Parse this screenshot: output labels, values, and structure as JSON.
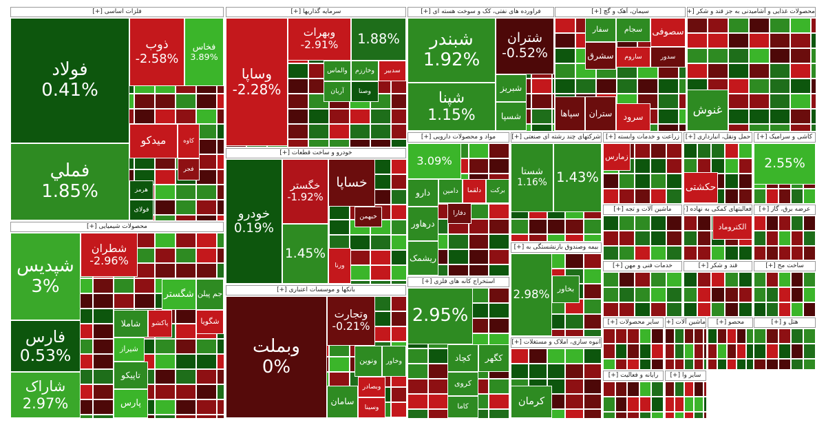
{
  "sectors": [
    {
      "title": "فلزات اساسی [+]",
      "tiles": [
        {
          "label": "فولاد",
          "change": "0.41%",
          "color": "#0d560d"
        },
        {
          "label": "فملي",
          "change": "1.85%",
          "color": "#2e8b22"
        },
        {
          "label": "ذوب",
          "change": "-2.58%",
          "color": "#c4181c"
        },
        {
          "label": "فخاس",
          "change": "3.89%",
          "color": "#3bb52a"
        },
        {
          "label": "میدکو",
          "color": "#c4181c"
        },
        {
          "label": "کاوه",
          "color": "#c4181c"
        },
        {
          "label": "فجر",
          "color": "#8e1013"
        },
        {
          "label": "هرمز",
          "color": "#0d560d"
        },
        {
          "label": "فولای",
          "color": "#0d560d"
        }
      ]
    },
    {
      "title": "محصولات شیمیایی [+]",
      "tiles": [
        {
          "label": "شپدیس",
          "change": "3%",
          "color": "#3aa82a"
        },
        {
          "label": "فارس",
          "change": "0.53%",
          "color": "#0d560d"
        },
        {
          "label": "شاراک",
          "change": "2.97%",
          "color": "#3aa82a"
        },
        {
          "label": "شطران",
          "change": "-2.96%",
          "color": "#c4181c"
        },
        {
          "label": "شگستر",
          "color": "#3bb52a"
        },
        {
          "label": "جم پیلن",
          "color": "#2e8b22"
        },
        {
          "label": "شگویا",
          "color": "#c4181c"
        },
        {
          "label": "پاکشو",
          "color": "#c4181c"
        },
        {
          "label": "شاملا",
          "color": "#2e8b22"
        },
        {
          "label": "شیراز",
          "color": "#3bb52a"
        },
        {
          "label": "تاپیکو",
          "color": "#2e8b22"
        },
        {
          "label": "پارس",
          "color": "#3bb52a"
        }
      ]
    },
    {
      "title": "سرمایه گذاریها [+]",
      "tiles": [
        {
          "label": "وساپا",
          "change": "-2.28%",
          "color": "#c4181c"
        },
        {
          "label": "وبهرات",
          "change": "-2.91%",
          "color": "#c4181c"
        },
        {
          "change": "1.88%",
          "color": "#1e6e1a"
        },
        {
          "label": "والماس",
          "color": "#2e8b22"
        },
        {
          "label": "وخارزم",
          "color": "#2e8b22"
        },
        {
          "label": "سدبیر",
          "color": "#c4181c"
        },
        {
          "label": "آریان",
          "color": "#2e8b22"
        },
        {
          "label": "وصنا",
          "color": "#0d560d"
        }
      ]
    },
    {
      "title": "خودرو و ساخت قطعات [+]",
      "tiles": [
        {
          "label": "خودرو",
          "change": "0.19%",
          "color": "#0d560d"
        },
        {
          "label": "خگستر",
          "change": "-1.92%",
          "color": "#b0141a"
        },
        {
          "label": "خساپا",
          "color": "#6b0d0d"
        },
        {
          "change": "1.45%",
          "color": "#2e8b22"
        },
        {
          "label": "خبهمن",
          "color": "#6b0d0d"
        },
        {
          "label": "ورنا",
          "color": "#c4181c"
        }
      ]
    },
    {
      "title": "بانکها و موسسات اعتباری [+]",
      "tiles": [
        {
          "label": "وبملت",
          "change": "0%",
          "color": "#550a0a"
        },
        {
          "label": "وتجارت",
          "change": "-0.21%",
          "color": "#6b0d0d"
        },
        {
          "label": "ونوین",
          "color": "#2e8b22"
        },
        {
          "label": "وخاور",
          "color": "#2e8b22"
        },
        {
          "label": "وبصادر",
          "color": "#c4181c"
        },
        {
          "label": "وسینا",
          "color": "#c4181c"
        },
        {
          "label": "سامان",
          "color": "#2e8b22"
        }
      ]
    },
    {
      "title": "فراورده های نفتی، کک و سوخت هسته ای [+]",
      "tiles": [
        {
          "label": "شبندر",
          "change": "1.92%",
          "color": "#2e8b22"
        },
        {
          "label": "شتران",
          "change": "-0.52%",
          "color": "#4d0808"
        },
        {
          "label": "شپنا",
          "change": "1.15%",
          "color": "#2e8b22"
        },
        {
          "label": "شبریز",
          "color": "#2e8b22"
        },
        {
          "label": "شسپا",
          "color": "#2e8b22"
        }
      ]
    },
    {
      "title": "سیمان، آهک و گچ [+]",
      "tiles": [
        {
          "label": "سفار",
          "color": "#2e8b22"
        },
        {
          "label": "سجام",
          "color": "#2e8b22"
        },
        {
          "label": "سصوفی",
          "color": "#c4181c"
        },
        {
          "label": "سشرق",
          "color": "#6b0d0d"
        },
        {
          "label": "ساروم",
          "color": "#c4181c"
        },
        {
          "label": "سدور",
          "color": "#6b0d0d"
        },
        {
          "label": "ستران",
          "color": "#6b0d0d"
        },
        {
          "label": "سپاها",
          "color": "#6b0d0d"
        },
        {
          "label": "سرود",
          "color": "#c4181c"
        }
      ]
    },
    {
      "title": "محصولات غذایی و آشامیدنی به جز قند و شکر [+]",
      "tiles": [
        {
          "label": "غنوش",
          "color": "#2e8b22"
        }
      ]
    },
    {
      "title": "مواد و محصولات دارویی [+]",
      "tiles": [
        {
          "change": "3.09%",
          "color": "#3bb52a"
        },
        {
          "label": "برکت",
          "color": "#2e8b22"
        },
        {
          "label": "دلقما",
          "color": "#c4181c"
        },
        {
          "label": "دامین",
          "color": "#2e8b22"
        },
        {
          "label": "دارو",
          "color": "#2e8b22"
        },
        {
          "label": "دفارا",
          "color": "#6b0d0d"
        },
        {
          "label": "درهاور",
          "color": "#2e8b22"
        },
        {
          "label": "ریشمک",
          "color": "#2e8b22"
        }
      ]
    },
    {
      "title": "شرکتهای چند رشته ای صنعتی [+]",
      "tiles": [
        {
          "label": "شستا",
          "change": "1.16%",
          "color": "#2e8b22"
        },
        {
          "change": "1.43%",
          "color": "#2e8b22"
        }
      ]
    },
    {
      "title": "استخراج کانه های فلزی [+]",
      "tiles": [
        {
          "change": "2.95%",
          "color": "#2e8b22"
        },
        {
          "label": "کچاد",
          "color": "#2e8b22"
        },
        {
          "label": "کگهر",
          "color": "#2e8b22"
        },
        {
          "label": "کروی",
          "color": "#2e8b22"
        },
        {
          "label": "کاما",
          "color": "#2e8b22"
        }
      ]
    },
    {
      "title": "بیمه وصندوق بازنشستگی به [+]",
      "tiles": [
        {
          "change": "2.98%",
          "color": "#2e8b22"
        },
        {
          "label": "بخاور",
          "color": "#2e8b22"
        }
      ]
    },
    {
      "title": "انبوه سازی، املاک و مستغلات [+]",
      "tiles": [
        {
          "label": "کرمان",
          "color": "#2e8b22"
        }
      ]
    },
    {
      "title": "زراعت و خدمات وابسته [+]",
      "tiles": [
        {
          "label": "زمارس",
          "color": "#c4181c"
        }
      ]
    },
    {
      "title": "حمل ونقل، انبارداری [+]",
      "tiles": [
        {
          "label": "حکشتی",
          "color": "#c4181c"
        }
      ]
    },
    {
      "title": "کاشی و سرامیک [+]",
      "tiles": [
        {
          "change": "2.55%",
          "color": "#3bb52a"
        }
      ]
    },
    {
      "title": "ماشین آلات و تجه [+]",
      "tiles": []
    },
    {
      "title": "فعالیتهای کمکی به نهاده [+]",
      "tiles": [
        {
          "label": "الکتروماد",
          "color": "#c4181c"
        }
      ]
    },
    {
      "title": "عرضه برق، گاز [+]",
      "tiles": []
    },
    {
      "title": "خدمات فنی و مهن [+]",
      "tiles": []
    },
    {
      "title": "قند و شکر [+]",
      "tiles": []
    },
    {
      "title": "ساخت مح [+]",
      "tiles": []
    },
    {
      "title": "سایر محصولات [+]",
      "tiles": []
    },
    {
      "title": "ماشین آلات [+]",
      "tiles": []
    },
    {
      "title": "محصو [+]",
      "tiles": []
    },
    {
      "title": "هتل و [+]",
      "tiles": []
    },
    {
      "title": "رایانه و فعالیت [+]",
      "tiles": []
    },
    {
      "title": "سایر وا [+]",
      "tiles": []
    }
  ]
}
